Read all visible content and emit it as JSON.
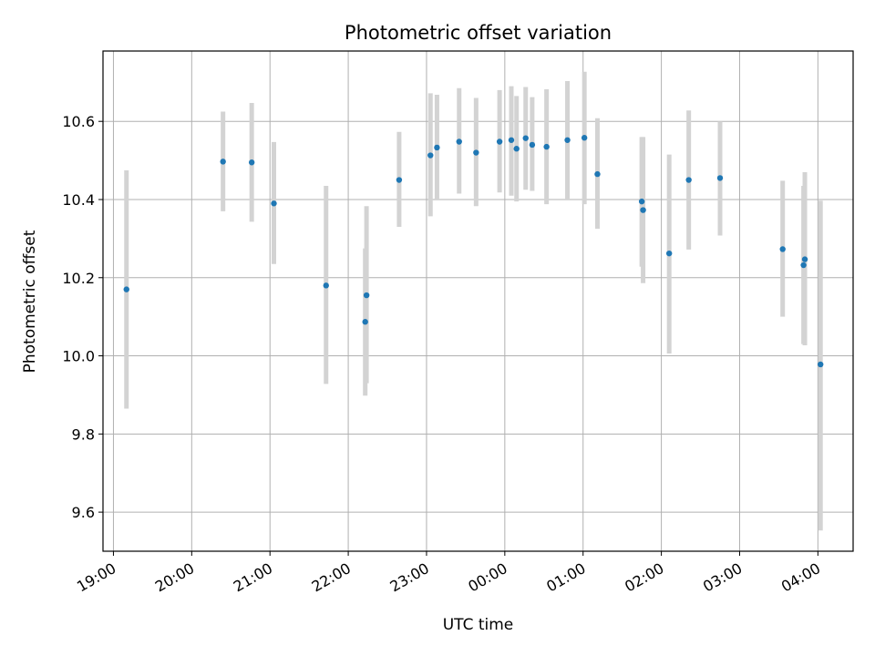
{
  "chart_data": {
    "type": "scatter",
    "title": "Photometric offset variation",
    "xlabel": "UTC time",
    "ylabel": "Photometric offset",
    "xlim": [
      "18:52",
      "04:27"
    ],
    "ylim": [
      9.5,
      10.78
    ],
    "grid": true,
    "x_ticks": [
      "19:00",
      "20:00",
      "21:00",
      "22:00",
      "23:00",
      "00:00",
      "01:00",
      "02:00",
      "03:00",
      "04:00"
    ],
    "y_ticks": [
      9.6,
      9.8,
      10.0,
      10.2,
      10.4,
      10.6
    ],
    "y_tick_labels": [
      "9.6",
      "9.8",
      "10.0",
      "10.2",
      "10.4",
      "10.6"
    ],
    "point_color": "#1f77b4",
    "errorbar_color": "#d3d3d3",
    "points": [
      {
        "x": "19:10",
        "y": 10.17,
        "ylow": 9.865,
        "yhigh": 10.475
      },
      {
        "x": "20:24",
        "y": 10.497,
        "ylow": 10.37,
        "yhigh": 10.625
      },
      {
        "x": "20:46",
        "y": 10.495,
        "ylow": 10.343,
        "yhigh": 10.647
      },
      {
        "x": "21:03",
        "y": 10.39,
        "ylow": 10.235,
        "yhigh": 10.547
      },
      {
        "x": "21:43",
        "y": 10.18,
        "ylow": 9.928,
        "yhigh": 10.435
      },
      {
        "x": "22:13",
        "y": 10.087,
        "ylow": 9.898,
        "yhigh": 10.275
      },
      {
        "x": "22:14",
        "y": 10.155,
        "ylow": 9.93,
        "yhigh": 10.383
      },
      {
        "x": "22:39",
        "y": 10.45,
        "ylow": 10.33,
        "yhigh": 10.573
      },
      {
        "x": "23:03",
        "y": 10.513,
        "ylow": 10.357,
        "yhigh": 10.672
      },
      {
        "x": "23:08",
        "y": 10.533,
        "ylow": 10.4,
        "yhigh": 10.668
      },
      {
        "x": "23:25",
        "y": 10.548,
        "ylow": 10.415,
        "yhigh": 10.685
      },
      {
        "x": "23:38",
        "y": 10.52,
        "ylow": 10.383,
        "yhigh": 10.66
      },
      {
        "x": "23:56",
        "y": 10.548,
        "ylow": 10.418,
        "yhigh": 10.68
      },
      {
        "x": "00:05",
        "y": 10.552,
        "ylow": 10.41,
        "yhigh": 10.69
      },
      {
        "x": "00:09",
        "y": 10.53,
        "ylow": 10.395,
        "yhigh": 10.665
      },
      {
        "x": "00:16",
        "y": 10.557,
        "ylow": 10.425,
        "yhigh": 10.688
      },
      {
        "x": "00:21",
        "y": 10.54,
        "ylow": 10.422,
        "yhigh": 10.662
      },
      {
        "x": "00:32",
        "y": 10.535,
        "ylow": 10.388,
        "yhigh": 10.682
      },
      {
        "x": "00:48",
        "y": 10.552,
        "ylow": 10.4,
        "yhigh": 10.703
      },
      {
        "x": "01:01",
        "y": 10.558,
        "ylow": 10.388,
        "yhigh": 10.727
      },
      {
        "x": "01:11",
        "y": 10.465,
        "ylow": 10.325,
        "yhigh": 10.608
      },
      {
        "x": "01:45",
        "y": 10.395,
        "ylow": 10.228,
        "yhigh": 10.56
      },
      {
        "x": "01:46",
        "y": 10.373,
        "ylow": 10.186,
        "yhigh": 10.56
      },
      {
        "x": "02:06",
        "y": 10.262,
        "ylow": 10.006,
        "yhigh": 10.515
      },
      {
        "x": "02:21",
        "y": 10.45,
        "ylow": 10.272,
        "yhigh": 10.628
      },
      {
        "x": "02:45",
        "y": 10.455,
        "ylow": 10.308,
        "yhigh": 10.6
      },
      {
        "x": "03:33",
        "y": 10.273,
        "ylow": 10.1,
        "yhigh": 10.448
      },
      {
        "x": "03:49",
        "y": 10.232,
        "ylow": 10.03,
        "yhigh": 10.435
      },
      {
        "x": "03:50",
        "y": 10.247,
        "ylow": 10.027,
        "yhigh": 10.47
      },
      {
        "x": "04:02",
        "y": 9.978,
        "ylow": 9.553,
        "yhigh": 10.397
      }
    ]
  }
}
